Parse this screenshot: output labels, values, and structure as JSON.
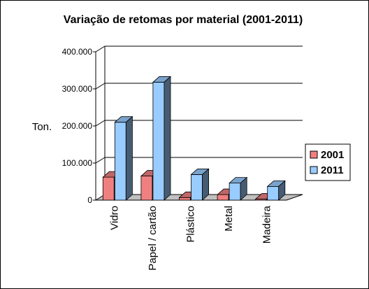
{
  "chart_data": {
    "type": "bar",
    "title": "Variação de retomas por material (2001-2011)",
    "ylabel": "Ton.",
    "xlabel": "",
    "categories": [
      "Vidro",
      "Papel / cartão",
      "Plástico",
      "Metal",
      "Madeira"
    ],
    "series": [
      {
        "name": "2001",
        "values": [
          62000,
          65000,
          7000,
          15000,
          3000
        ],
        "color": "#f08080"
      },
      {
        "name": "2011",
        "values": [
          210000,
          318000,
          69000,
          46000,
          37000
        ],
        "color": "#99ccff"
      }
    ],
    "ylim": [
      0,
      400000
    ],
    "yticks": [
      0,
      100000,
      200000,
      300000,
      400000
    ],
    "ytick_labels": [
      "0",
      "100.000",
      "200.000",
      "300.000",
      "400.000"
    ],
    "grid": true,
    "legend": "right",
    "style": "3d-clustered-column"
  }
}
